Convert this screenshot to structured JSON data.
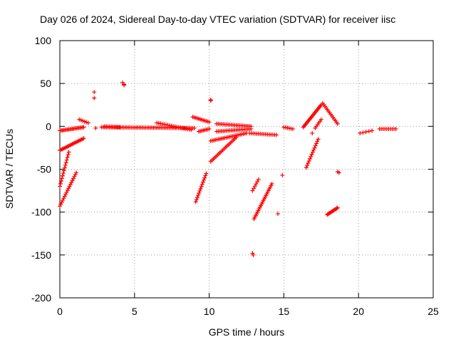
{
  "chart_data": {
    "type": "scatter",
    "title": "Day 026 of 2024, Sidereal Day-to-day VTEC variation (SDTVAR) for receiver iisc",
    "xlabel": "GPS time / hours",
    "ylabel": "SDTVAR / TECUs",
    "xlim": [
      0,
      25
    ],
    "ylim": [
      -200,
      100
    ],
    "x_ticks": [
      "0",
      "5",
      "10",
      "15",
      "20",
      "25"
    ],
    "y_ticks": [
      "100",
      "50",
      "0",
      "-50",
      "-100",
      "-150",
      "-200"
    ],
    "grid": true,
    "marker": "plus",
    "marker_color": "#ff0000",
    "segments": [
      {
        "from": [
          0.0,
          -5
        ],
        "to": [
          1.6,
          -1
        ],
        "n": 20
      },
      {
        "from": [
          0.0,
          -28
        ],
        "to": [
          1.6,
          -14
        ],
        "n": 20
      },
      {
        "from": [
          0.0,
          -70
        ],
        "to": [
          0.6,
          -30
        ],
        "n": 14
      },
      {
        "from": [
          0.0,
          -93
        ],
        "to": [
          1.1,
          -54
        ],
        "n": 18
      },
      {
        "from": [
          1.3,
          8
        ],
        "to": [
          1.9,
          4
        ],
        "n": 6
      },
      {
        "from": [
          2.8,
          -1
        ],
        "to": [
          9.0,
          -2
        ],
        "n": 60
      },
      {
        "from": [
          3.0,
          0
        ],
        "to": [
          4.0,
          -1
        ],
        "n": 10
      },
      {
        "from": [
          6.5,
          4
        ],
        "to": [
          8.8,
          -4
        ],
        "n": 20
      },
      {
        "from": [
          9.1,
          -88
        ],
        "to": [
          9.8,
          -55
        ],
        "n": 14
      },
      {
        "from": [
          8.9,
          11
        ],
        "to": [
          10.0,
          5
        ],
        "n": 12
      },
      {
        "from": [
          9.3,
          -6
        ],
        "to": [
          10.0,
          -3
        ],
        "n": 8
      },
      {
        "from": [
          10.1,
          -17
        ],
        "to": [
          12.5,
          -8
        ],
        "n": 24
      },
      {
        "from": [
          10.1,
          -41
        ],
        "to": [
          11.8,
          -13
        ],
        "n": 20
      },
      {
        "from": [
          10.5,
          3
        ],
        "to": [
          12.8,
          0
        ],
        "n": 22
      },
      {
        "from": [
          10.5,
          -6
        ],
        "to": [
          12.8,
          -3
        ],
        "n": 22
      },
      {
        "from": [
          13.0,
          -108
        ],
        "to": [
          14.2,
          -67
        ],
        "n": 22
      },
      {
        "from": [
          12.9,
          -75
        ],
        "to": [
          13.3,
          -62
        ],
        "n": 6
      },
      {
        "from": [
          12.7,
          -8
        ],
        "to": [
          14.5,
          -10
        ],
        "n": 16
      },
      {
        "from": [
          15.0,
          -1
        ],
        "to": [
          15.6,
          -3
        ],
        "n": 6
      },
      {
        "from": [
          16.3,
          -1
        ],
        "to": [
          17.5,
          25
        ],
        "n": 20
      },
      {
        "from": [
          17.6,
          27
        ],
        "to": [
          18.6,
          3
        ],
        "n": 14
      },
      {
        "from": [
          16.5,
          -48
        ],
        "to": [
          17.3,
          -15
        ],
        "n": 14
      },
      {
        "from": [
          17.1,
          -2
        ],
        "to": [
          17.5,
          8
        ],
        "n": 6
      },
      {
        "from": [
          17.9,
          -103
        ],
        "to": [
          18.6,
          -95
        ],
        "n": 12
      },
      {
        "from": [
          20.1,
          -8
        ],
        "to": [
          20.9,
          -5
        ],
        "n": 5
      },
      {
        "from": [
          21.4,
          -3
        ],
        "to": [
          22.5,
          -3
        ],
        "n": 10
      }
    ],
    "points": [
      [
        2.3,
        40
      ],
      [
        2.3,
        33
      ],
      [
        2.4,
        -2
      ],
      [
        4.2,
        51
      ],
      [
        4.3,
        48
      ],
      [
        4.3,
        49
      ],
      [
        10.1,
        31
      ],
      [
        10.1,
        30
      ],
      [
        12.9,
        -148
      ],
      [
        12.95,
        -150
      ],
      [
        14.6,
        -102
      ],
      [
        14.9,
        -57
      ],
      [
        16.9,
        -8
      ],
      [
        18.6,
        -53
      ],
      [
        18.7,
        -54
      ]
    ]
  }
}
